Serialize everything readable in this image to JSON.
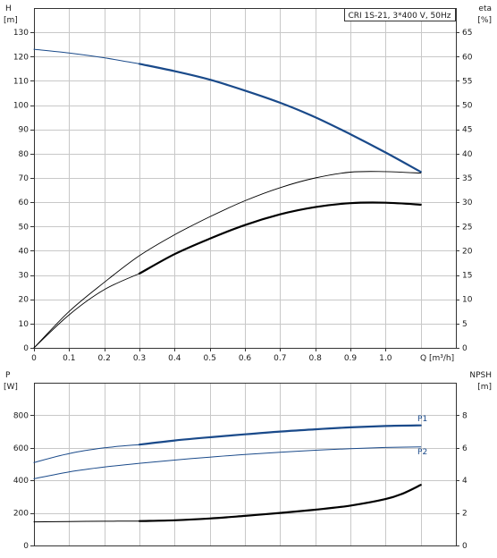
{
  "chart_data": [
    {
      "type": "line",
      "title": "CRI 1S-21, 3*400 V, 50Hz",
      "xlabel": "Q [m³/h]",
      "ylabel": "H",
      "ylabel_unit": "[m]",
      "ylabel_right": "eta",
      "ylabel_right_unit": "[%]",
      "xlim": [
        0,
        1.2
      ],
      "ylim": [
        0,
        140
      ],
      "ylim_right": [
        0,
        70
      ],
      "x_ticks": [
        0,
        0.1,
        0.2,
        0.3,
        0.4,
        0.5,
        0.6,
        0.7,
        0.8,
        0.9,
        1.0
      ],
      "x_tick_labels": [
        "0",
        "0.1",
        "0.2",
        "0.3",
        "0.4",
        "0.5",
        "0.6",
        "0.7",
        "0.8",
        "0.9",
        "1.0"
      ],
      "y_ticks": [
        0,
        10,
        20,
        30,
        40,
        50,
        60,
        70,
        80,
        90,
        100,
        110,
        120,
        130
      ],
      "y_ticks_right": [
        0,
        5,
        10,
        15,
        20,
        25,
        30,
        35,
        40,
        45,
        50,
        55,
        60,
        65
      ],
      "grid": true,
      "series": [
        {
          "axis": "left",
          "x": [
            0,
            0.1,
            0.2,
            0.3
          ],
          "y": [
            123,
            121.5,
            119.5,
            117
          ],
          "color": "#1a4a8a",
          "width": 1
        },
        {
          "axis": "left",
          "x": [
            0.3,
            0.4,
            0.5,
            0.6,
            0.7,
            0.8,
            0.9,
            1.0,
            1.1
          ],
          "y": [
            117,
            114,
            110.5,
            106,
            101,
            95,
            88,
            80.5,
            72.5
          ],
          "color": "#1a4a8a",
          "width": 2.2
        },
        {
          "axis": "right",
          "x": [
            0,
            0.1,
            0.2,
            0.3,
            0.4,
            0.5,
            0.6,
            0.7,
            0.8,
            0.9,
            1.0,
            1.1
          ],
          "y": [
            0,
            7.5,
            13.5,
            19,
            23.3,
            27,
            30.3,
            33,
            35,
            36.2,
            36.3,
            36
          ],
          "color": "#000000",
          "width": 0.9
        },
        {
          "axis": "right",
          "x": [
            0,
            0.1,
            0.2,
            0.3
          ],
          "y": [
            0,
            6.8,
            12,
            15.3
          ],
          "color": "#000000",
          "width": 0.9
        },
        {
          "axis": "right",
          "x": [
            0.3,
            0.4,
            0.5,
            0.6,
            0.7,
            0.8,
            0.9,
            1.0,
            1.1
          ],
          "y": [
            15.3,
            19.3,
            22.5,
            25.3,
            27.5,
            29,
            29.8,
            29.9,
            29.5
          ],
          "color": "#000000",
          "width": 2.2
        }
      ]
    },
    {
      "type": "line",
      "xlabel": "",
      "ylabel": "P",
      "ylabel_unit": "[W]",
      "ylabel_right": "NPSH",
      "ylabel_right_unit": "[m]",
      "xlim": [
        0,
        1.2
      ],
      "ylim": [
        0,
        1000
      ],
      "ylim_right": [
        0,
        10
      ],
      "y_ticks": [
        0,
        200,
        400,
        600,
        800
      ],
      "y_ticks_right": [
        0,
        2,
        4,
        6,
        8
      ],
      "grid": true,
      "series": [
        {
          "name": "P1",
          "axis": "left",
          "x": [
            0,
            0.1,
            0.2,
            0.3
          ],
          "y": [
            510,
            565,
            600,
            620
          ],
          "color": "#1a4a8a",
          "width": 1
        },
        {
          "name": "P1",
          "axis": "left",
          "x": [
            0.3,
            0.4,
            0.5,
            0.6,
            0.7,
            0.8,
            0.9,
            1.0,
            1.1
          ],
          "y": [
            620,
            645,
            665,
            683,
            700,
            714,
            726,
            734,
            738
          ],
          "color": "#1a4a8a",
          "width": 2.2
        },
        {
          "name": "P2",
          "axis": "left",
          "x": [
            0,
            0.1,
            0.2,
            0.3,
            0.4,
            0.5,
            0.6,
            0.7,
            0.8,
            0.9,
            1.0,
            1.1
          ],
          "y": [
            410,
            452,
            482,
            505,
            525,
            543,
            559,
            573,
            585,
            595,
            602,
            606
          ],
          "color": "#1a4a8a",
          "width": 1
        },
        {
          "axis": "right",
          "x": [
            0,
            0.1,
            0.2,
            0.3
          ],
          "y": [
            1.45,
            1.47,
            1.49,
            1.5
          ],
          "color": "#000000",
          "width": 1
        },
        {
          "axis": "right",
          "x": [
            0.3,
            0.4,
            0.5,
            0.6,
            0.7,
            0.8,
            0.9,
            1.0,
            1.05,
            1.1
          ],
          "y": [
            1.5,
            1.55,
            1.66,
            1.82,
            2.0,
            2.2,
            2.45,
            2.85,
            3.2,
            3.72
          ],
          "color": "#000000",
          "width": 2.2
        }
      ],
      "series_labels": [
        {
          "text": "P1",
          "x": 1.105,
          "y": 765,
          "color": "#1a4a8a"
        },
        {
          "text": "P2",
          "x": 1.105,
          "y": 560,
          "color": "#1a4a8a"
        }
      ]
    }
  ]
}
